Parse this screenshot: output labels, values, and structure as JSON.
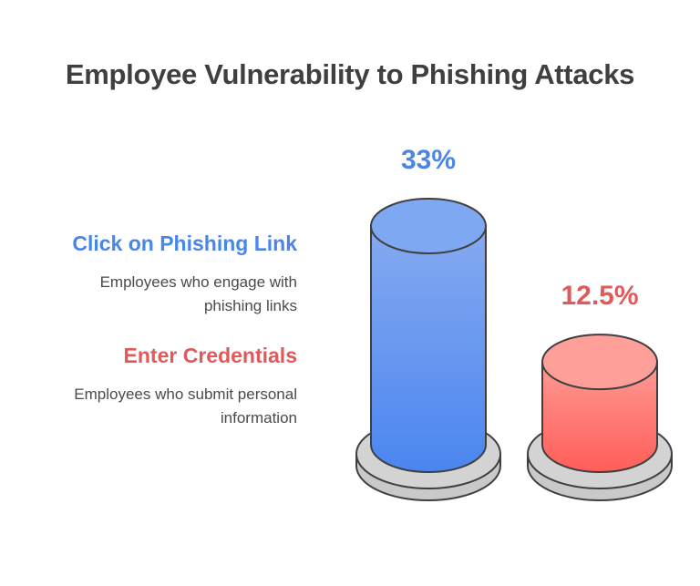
{
  "title": "Employee Vulnerability to Phishing Attacks",
  "chart_data": {
    "type": "bar",
    "title": "Employee Vulnerability to Phishing Attacks",
    "categories": [
      "Click on Phishing Link",
      "Enter Credentials"
    ],
    "values": [
      33,
      12.5
    ],
    "value_labels": [
      "33%",
      "12.5%"
    ],
    "unit": "%",
    "legend": [
      {
        "label": "Click on Phishing Link",
        "description": "Employees who engage with phishing links",
        "color": "#4a86e8"
      },
      {
        "label": "Enter Credentials",
        "description": "Employees who submit personal information",
        "color": "#e05a5a"
      }
    ],
    "legend_placement": "left",
    "grid": false
  },
  "colors": {
    "blue_top": "#7fa8f2",
    "blue_body_light": "#86aaf0",
    "blue_body_dark": "#4a86f0",
    "red_top": "#ff9f9a",
    "red_body_light": "#ff9a94",
    "red_body_dark": "#ff5e58",
    "base": "#d3d3d3",
    "stroke": "#3f3f3f",
    "title": "#3f3f3f",
    "text": "#4a4a4a",
    "blue_text": "#4a86e8",
    "red_text": "#e05a5a"
  }
}
